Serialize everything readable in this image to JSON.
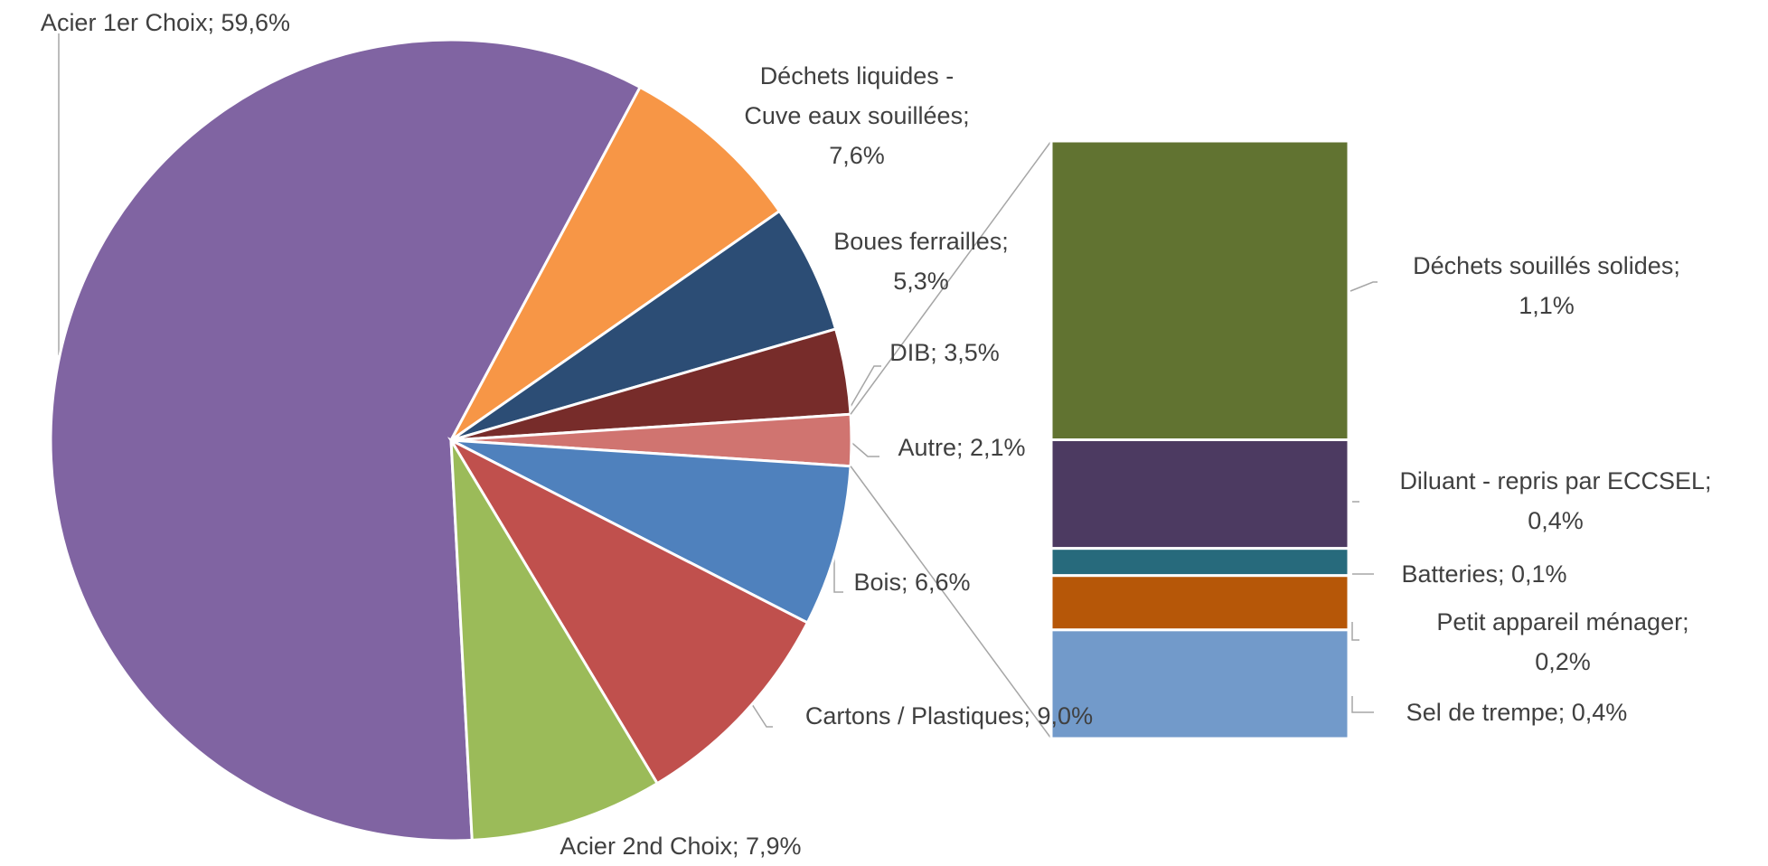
{
  "chart_data": {
    "type": "pie",
    "categories": [
      "Acier 1er Choix",
      "Déchets liquides - Cuve eaux souillées",
      "Boues ferrailles",
      "DIB",
      "Autre",
      "Bois",
      "Cartons / Plastiques",
      "Acier 2nd Choix"
    ],
    "values": [
      59.6,
      7.6,
      5.3,
      3.5,
      2.1,
      6.6,
      9.0,
      7.9
    ],
    "value_labels": [
      "Acier 1er Choix; 59,6%",
      "Déchets liquides -\nCuve eaux souillées;\n7,6%",
      "Boues ferrailles;\n5,3%",
      "DIB; 3,5%",
      "Autre; 2,1%",
      "Bois; 6,6%",
      "Cartons / Plastiques; 9,0%",
      "Acier 2nd Choix; 7,9%"
    ],
    "colors": [
      "#8064a2",
      "#f79646",
      "#2c4d75",
      "#772c2a",
      "#d07470",
      "#4f81bd",
      "#c0504d",
      "#9bbb59"
    ],
    "bar": {
      "categories": [
        "Déchets souillés solides",
        "Diluant - repris par ECCSEL",
        "Batteries",
        "Petit appareil ménager",
        "Sel de trempe"
      ],
      "values": [
        1.1,
        0.4,
        0.1,
        0.2,
        0.4
      ],
      "value_labels": [
        "Déchets souillés solides;\n1,1%",
        "Diluant - repris par ECCSEL;\n0,4%",
        "Batteries; 0,1%",
        "Petit appareil ménager;\n0,2%",
        "Sel de trempe; 0,4%"
      ],
      "colors": [
        "#617331",
        "#4c3a61",
        "#276a7c",
        "#b65708",
        "#729aca"
      ]
    }
  }
}
